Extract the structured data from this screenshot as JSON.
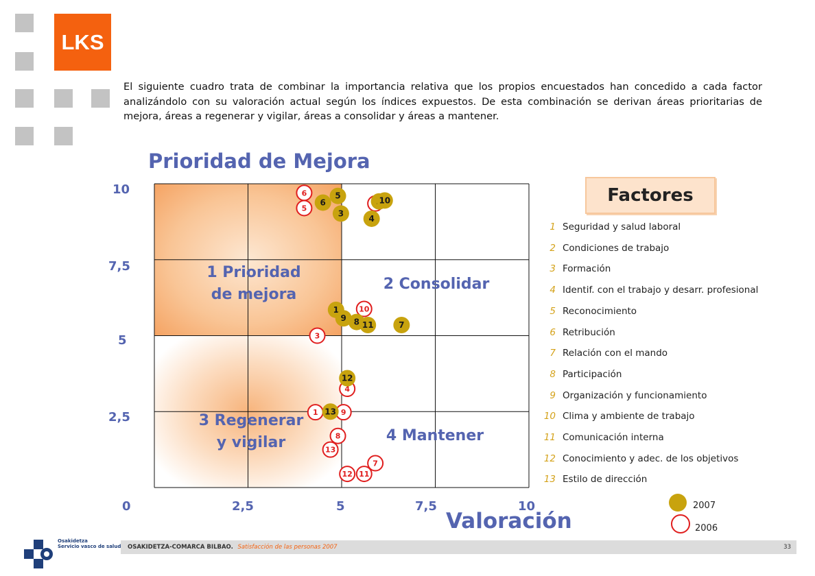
{
  "brand": {
    "logo_text": "LKS"
  },
  "intro_text": "El siguiente cuadro trata de combinar la importancia relativa que los propios encuestados han concedido a cada factor analizándolo con su valoración actual según los índices expuestos. De esta combinación se derivan áreas prioritarias de mejora, áreas a regenerar y vigilar, áreas a consolidar y áreas a mantener.",
  "chart_data": {
    "type": "scatter",
    "title": "Prioridad de Mejora",
    "xlabel": "Valoración",
    "ylabel": "",
    "xlim": [
      0,
      10
    ],
    "ylim": [
      0,
      10
    ],
    "x_ticks": [
      "0",
      "2,5",
      "5",
      "7,5",
      "10"
    ],
    "y_ticks": [
      "0",
      "2,5",
      "5",
      "7,5",
      "10"
    ],
    "grid": true,
    "quadrants": [
      {
        "id": "q1",
        "label_line1": "1 Prioridad",
        "label_line2": "de mejora"
      },
      {
        "id": "q2",
        "label_line1": "2 Consolidar",
        "label_line2": ""
      },
      {
        "id": "q3",
        "label_line1": "3 Regenerar",
        "label_line2": "y vigilar"
      },
      {
        "id": "q4",
        "label_line1": "4 Mantener",
        "label_line2": ""
      }
    ],
    "series": [
      {
        "name": "2007",
        "color": "#c8a30e",
        "points": [
          {
            "label": "1",
            "x": 4.85,
            "y": 5.85
          },
          {
            "label": "2",
            "x": 6.0,
            "y": 9.42
          },
          {
            "label": "3",
            "x": 4.98,
            "y": 9.02
          },
          {
            "label": "4",
            "x": 5.8,
            "y": 8.85
          },
          {
            "label": "5",
            "x": 4.9,
            "y": 9.6
          },
          {
            "label": "6",
            "x": 4.5,
            "y": 9.38
          },
          {
            "label": "7",
            "x": 6.6,
            "y": 5.35
          },
          {
            "label": "8",
            "x": 5.4,
            "y": 5.45
          },
          {
            "label": "9",
            "x": 5.05,
            "y": 5.57
          },
          {
            "label": "10",
            "x": 6.15,
            "y": 9.45
          },
          {
            "label": "11",
            "x": 5.7,
            "y": 5.35
          },
          {
            "label": "12",
            "x": 5.15,
            "y": 3.6
          },
          {
            "label": "13",
            "x": 4.7,
            "y": 2.5
          }
        ]
      },
      {
        "name": "2006",
        "color": "#e01e1e",
        "points": [
          {
            "label": "1",
            "x": 4.3,
            "y": 2.48
          },
          {
            "label": "2",
            "x": 5.9,
            "y": 9.35
          },
          {
            "label": "3",
            "x": 4.35,
            "y": 5.0
          },
          {
            "label": "4",
            "x": 5.15,
            "y": 3.25
          },
          {
            "label": "5",
            "x": 4.0,
            "y": 9.2
          },
          {
            "label": "6",
            "x": 4.0,
            "y": 9.7
          },
          {
            "label": "7",
            "x": 5.9,
            "y": 0.8
          },
          {
            "label": "8",
            "x": 4.9,
            "y": 1.7
          },
          {
            "label": "9",
            "x": 5.05,
            "y": 2.48
          },
          {
            "label": "10",
            "x": 5.6,
            "y": 5.88
          },
          {
            "label": "11",
            "x": 5.6,
            "y": 0.45
          },
          {
            "label": "12",
            "x": 5.15,
            "y": 0.45
          },
          {
            "label": "13",
            "x": 4.7,
            "y": 1.25
          }
        ]
      }
    ]
  },
  "factores": {
    "heading": "Factores",
    "items": [
      {
        "num": "1",
        "label": "Seguridad y salud laboral"
      },
      {
        "num": "2",
        "label": "Condiciones de trabajo"
      },
      {
        "num": "3",
        "label": "Formación"
      },
      {
        "num": "4",
        "label": "Identif. con el trabajo y desarr. profesional"
      },
      {
        "num": "5",
        "label": "Reconocimiento"
      },
      {
        "num": "6",
        "label": "Retribución"
      },
      {
        "num": "7",
        "label": "Relación con el mando"
      },
      {
        "num": "8",
        "label": "Participación"
      },
      {
        "num": "9",
        "label": "Organización y funcionamiento"
      },
      {
        "num": "10",
        "label": "Clima y ambiente de trabajo"
      },
      {
        "num": "11",
        "label": "Comunicación interna"
      },
      {
        "num": "12",
        "label": "Conocimiento y adec. de los objetivos"
      },
      {
        "num": "13",
        "label": "Estilo de dirección"
      }
    ],
    "year_2007": "2007",
    "year_2006": "2006"
  },
  "footer": {
    "org": "OSAKIDETZA-COMARCA BILBAO.",
    "subtitle": "Satisfacción de las personas 2007",
    "page": "33",
    "brand_line1": "Osakidetza",
    "brand_line2": "Servicio vasco de salud"
  }
}
